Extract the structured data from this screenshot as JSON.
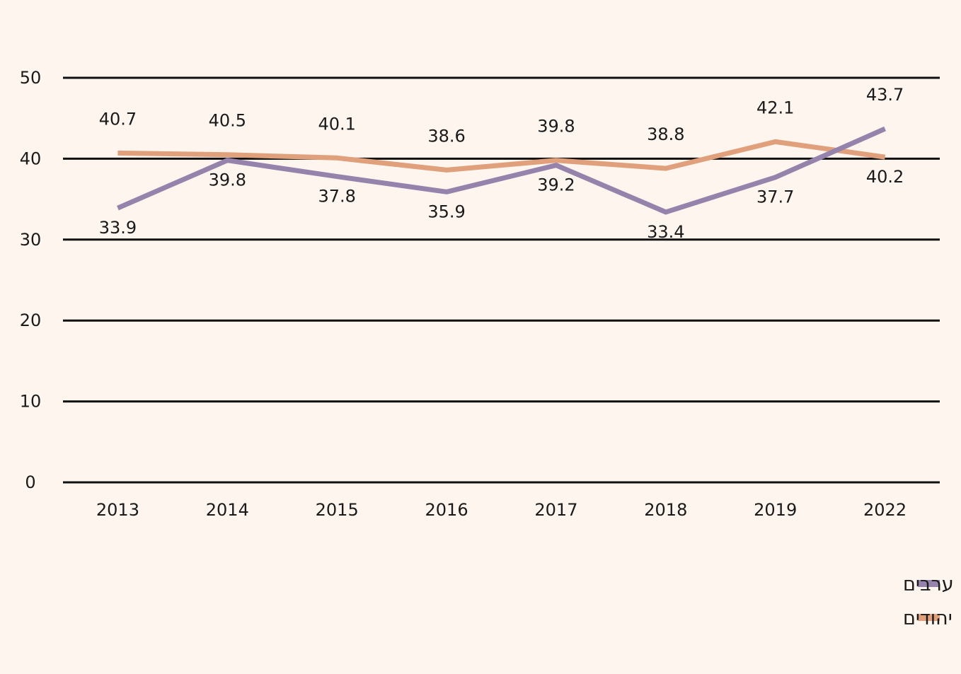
{
  "chart_data": {
    "type": "line",
    "title": "",
    "xlabel": "",
    "ylabel": "",
    "categories": [
      "2013",
      "2014",
      "2015",
      "2016",
      "2017",
      "2018",
      "2019",
      "2022"
    ],
    "ylim": [
      0,
      50
    ],
    "yticks": [
      "0",
      "10",
      "20",
      "30",
      "40",
      "50"
    ],
    "grid": true,
    "legend_position": "bottom-right",
    "series": [
      {
        "name": "ערבים",
        "color": "#9683ab",
        "values": [
          33.9,
          39.8,
          37.8,
          35.9,
          39.2,
          33.4,
          37.7,
          43.7
        ],
        "labels": [
          "33.9",
          "39.8",
          "37.8",
          "35.9",
          "39.2",
          "33.4",
          "37.7",
          "43.7"
        ]
      },
      {
        "name": "יהודים",
        "color": "#e1a07c",
        "values": [
          40.7,
          40.5,
          40.1,
          38.6,
          39.8,
          38.8,
          42.1,
          40.2
        ],
        "labels": [
          "40.7",
          "40.5",
          "40.1",
          "38.6",
          "39.8",
          "38.8",
          "42.1",
          "40.2"
        ]
      }
    ]
  }
}
